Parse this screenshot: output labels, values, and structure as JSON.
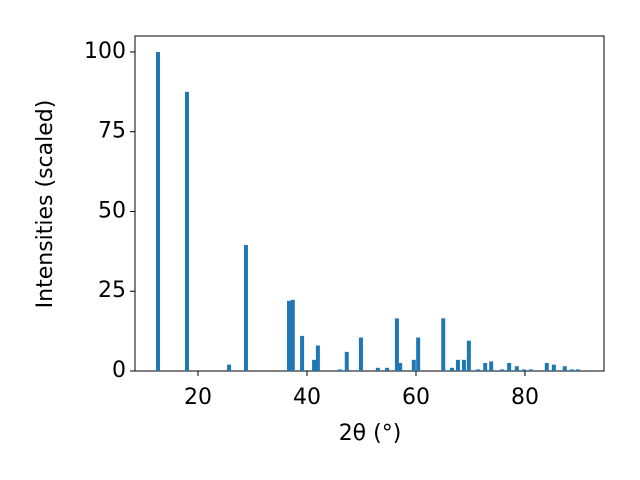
{
  "chart_data": {
    "type": "bar",
    "x_label": "2θ (°)",
    "y_label": "Intensities (scaled)",
    "color": "#1f77b4",
    "x": [
      12.66,
      17.98,
      25.7,
      28.8,
      36.7,
      37.4,
      39.1,
      41.3,
      42.0,
      46.0,
      47.3,
      49.9,
      53.0,
      54.7,
      56.5,
      57.1,
      59.6,
      60.4,
      65.0,
      66.6,
      67.7,
      68.8,
      69.7,
      71.4,
      72.7,
      73.8,
      75.8,
      77.1,
      78.5,
      79.8,
      81.1,
      84.0,
      85.3,
      87.3,
      88.6,
      89.7
    ],
    "values": [
      100,
      87.5,
      2,
      39.5,
      22,
      22.3,
      11,
      3.5,
      8,
      0.5,
      6,
      10.5,
      1,
      1,
      16.5,
      2.5,
      3.5,
      10.5,
      16.5,
      1,
      3.5,
      3.5,
      9.5,
      0.5,
      2.5,
      3,
      0.5,
      2.5,
      1.5,
      0.5,
      0.5,
      2.5,
      2,
      1.5,
      0.5,
      0.5
    ],
    "xlim": [
      8.44,
      94.5
    ],
    "xticks": [
      20,
      40,
      60,
      80
    ],
    "ylim": [
      0,
      105
    ],
    "yticks": [
      0,
      25,
      50,
      75,
      100
    ]
  }
}
